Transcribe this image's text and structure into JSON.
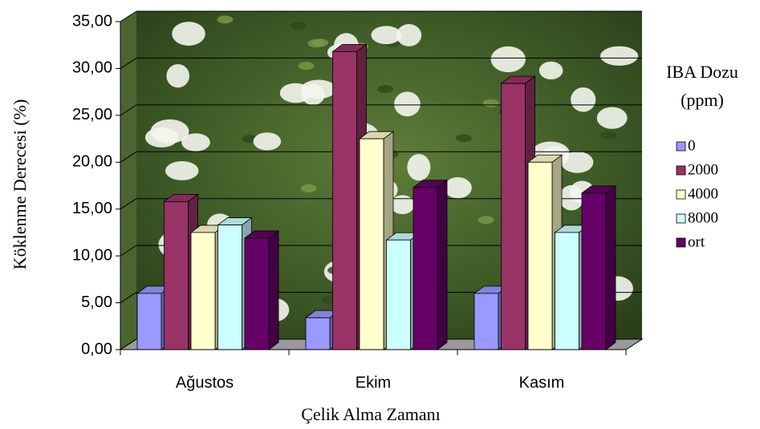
{
  "chart_data": {
    "type": "bar3d",
    "x_label": "Çelik Alma Zamanı",
    "y_label": "Köklenme Derecesi (%)",
    "legend_title": [
      "IBA Dozu",
      "(ppm)"
    ],
    "categories": [
      "Ağustos",
      "Ekim",
      "Kasım"
    ],
    "series": [
      {
        "name": "0",
        "color": "#9999ff",
        "values": [
          6.0,
          3.4,
          6.0
        ]
      },
      {
        "name": "2000",
        "color": "#993366",
        "values": [
          15.8,
          31.8,
          28.4
        ]
      },
      {
        "name": "4000",
        "color": "#ffffcc",
        "values": [
          12.5,
          22.5,
          20.0
        ]
      },
      {
        "name": "8000",
        "color": "#ccffff",
        "values": [
          13.3,
          11.7,
          12.5
        ]
      },
      {
        "name": "ort",
        "color": "#660066",
        "values": [
          11.9,
          17.3,
          16.7
        ]
      }
    ],
    "ylim": [
      0,
      35
    ],
    "yticks": [
      {
        "value": 0,
        "label": "0,00"
      },
      {
        "value": 5,
        "label": "5,00"
      },
      {
        "value": 10,
        "label": "10,00"
      },
      {
        "value": 15,
        "label": "15,00"
      },
      {
        "value": 20,
        "label": "20,00"
      },
      {
        "value": 25,
        "label": "25,00"
      },
      {
        "value": 30,
        "label": "30,00"
      },
      {
        "value": 35,
        "label": "35,00"
      }
    ],
    "grid": true
  }
}
